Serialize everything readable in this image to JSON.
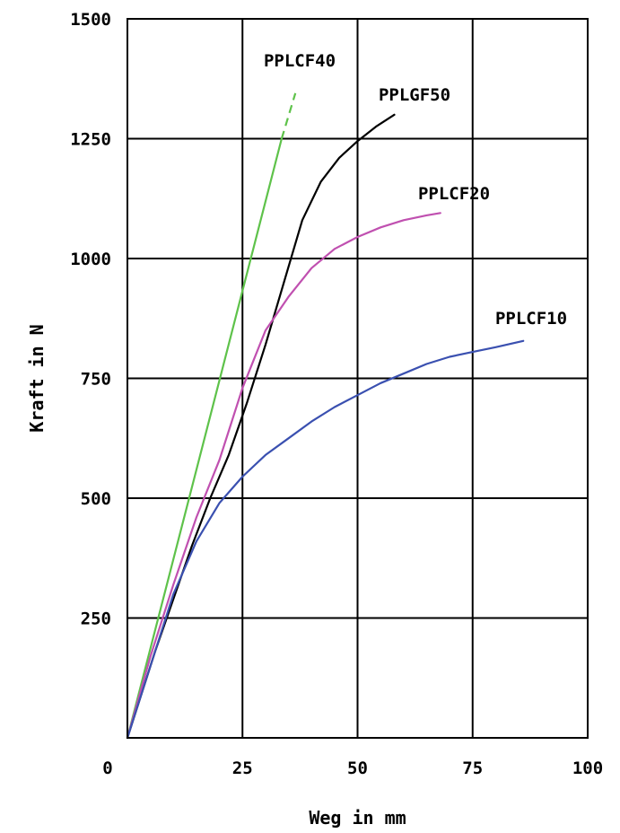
{
  "chart_data": {
    "type": "line",
    "xlabel": "Weg in mm",
    "ylabel": "Kraft in N",
    "xlim": [
      0,
      100
    ],
    "ylim": [
      0,
      1500
    ],
    "x_ticks": [
      0,
      25,
      50,
      75,
      100
    ],
    "y_ticks": [
      250,
      500,
      750,
      1000,
      1250,
      1500
    ],
    "grid": true,
    "legend": "none",
    "series": [
      {
        "name": "PPLCF40",
        "color": "#5ec24a",
        "points": [
          [
            0,
            0
          ],
          [
            33.5,
            1250
          ]
        ],
        "dashed_points": [
          [
            33.5,
            1250
          ],
          [
            36.5,
            1345
          ]
        ]
      },
      {
        "name": "PPLGF50",
        "color": "#000000",
        "points": [
          [
            0,
            0
          ],
          [
            6,
            180
          ],
          [
            10,
            290
          ],
          [
            14,
            400
          ],
          [
            18,
            500
          ],
          [
            22,
            590
          ],
          [
            26,
            700
          ],
          [
            30,
            820
          ],
          [
            34,
            950
          ],
          [
            38,
            1080
          ],
          [
            42,
            1160
          ],
          [
            46,
            1210
          ],
          [
            50,
            1245
          ],
          [
            54,
            1275
          ],
          [
            58,
            1300
          ]
        ]
      },
      {
        "name": "PPLCF20",
        "color": "#c050b0",
        "points": [
          [
            0,
            0
          ],
          [
            5,
            170
          ],
          [
            10,
            320
          ],
          [
            15,
            460
          ],
          [
            20,
            580
          ],
          [
            25,
            730
          ],
          [
            30,
            850
          ],
          [
            35,
            920
          ],
          [
            40,
            980
          ],
          [
            45,
            1020
          ],
          [
            50,
            1045
          ],
          [
            55,
            1065
          ],
          [
            60,
            1080
          ],
          [
            65,
            1090
          ],
          [
            68,
            1095
          ]
        ]
      },
      {
        "name": "PPLCF10",
        "color": "#3a50b0",
        "points": [
          [
            0,
            0
          ],
          [
            5,
            150
          ],
          [
            10,
            300
          ],
          [
            15,
            410
          ],
          [
            20,
            490
          ],
          [
            25,
            545
          ],
          [
            30,
            590
          ],
          [
            35,
            625
          ],
          [
            40,
            660
          ],
          [
            45,
            690
          ],
          [
            50,
            715
          ],
          [
            55,
            740
          ],
          [
            60,
            760
          ],
          [
            65,
            780
          ],
          [
            70,
            795
          ],
          [
            75,
            805
          ],
          [
            80,
            815
          ],
          [
            86,
            828
          ]
        ]
      }
    ]
  }
}
